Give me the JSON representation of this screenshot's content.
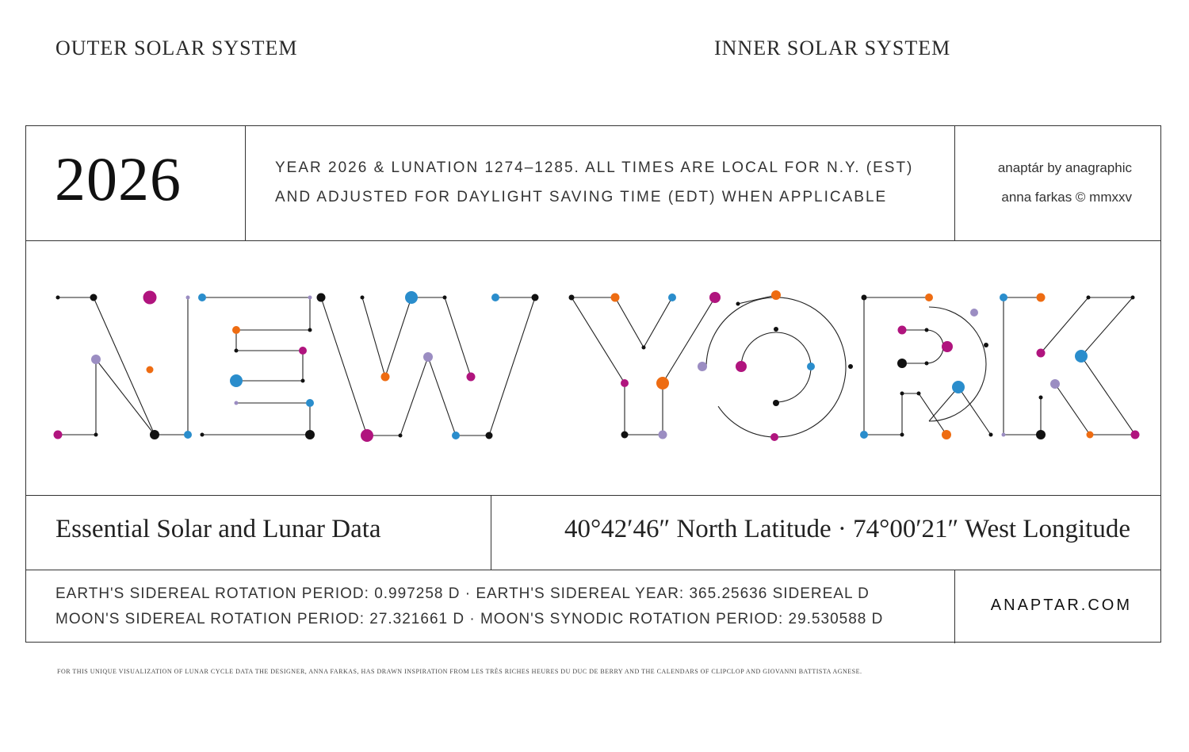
{
  "top_labels": {
    "outer": "OUTER SOLAR SYSTEM",
    "inner": "INNER SOLAR SYSTEM"
  },
  "header": {
    "year": "2026",
    "description_line1": "YEAR 2026 & LUNATION 1274–1285. ALL TIMES ARE LOCAL FOR N.Y. (EST)",
    "description_line2": "AND ADJUSTED FOR DAYLIGHT SAVING TIME (EDT) WHEN APPLICABLE",
    "credit_line1": "anaptár by anagraphic",
    "credit_line2": "anna farkas © mmxxv"
  },
  "title": {
    "text": "NEW YORK",
    "dot_colors": {
      "black": "#111111",
      "magenta": "#b0147e",
      "blue": "#2a8dcc",
      "orange": "#ee6c12",
      "lavender": "#9b8dc2"
    }
  },
  "data_row": {
    "heading": "Essential Solar and Lunar Data",
    "coordinates": "40°42′46″ North Latitude · 74°00′21″ West Longitude"
  },
  "facts": {
    "line1": "EARTH'S SIDEREAL ROTATION PERIOD: 0.997258 D  ·  EARTH'S SIDEREAL YEAR: 365.25636 SIDEREAL D",
    "line2": "MOON'S SIDEREAL ROTATION PERIOD: 27.321661 D  ·  MOON'S SYNODIC ROTATION PERIOD: 29.530588 D",
    "website": "ANAPTAR.COM"
  },
  "footnote": "FOR THIS UNIQUE VISUALIZATION OF LUNAR CYCLE DATA THE DESIGNER, ANNA FARKAS, HAS DRAWN INSPIRATION FROM LES TRÈS RICHES HEURES DU DUC DE BERRY AND THE CALENDARS OF CLIPCLOP AND GIOVANNI BATTISTA AGNESE."
}
